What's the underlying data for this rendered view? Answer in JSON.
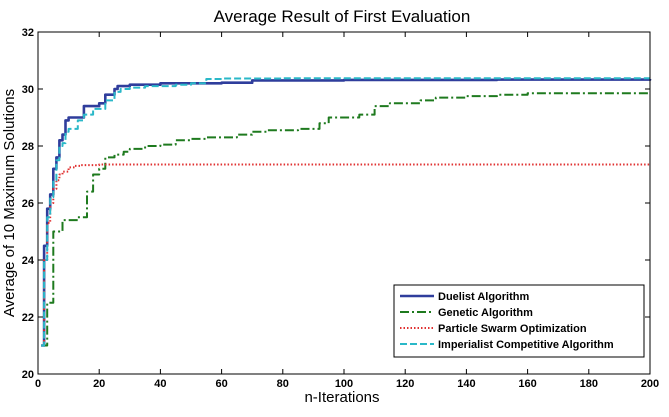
{
  "chart_data": {
    "type": "line",
    "title": "Average Result of First Evaluation",
    "xlabel": "n-Iterations",
    "ylabel": "Average of 10 Maximum Solutions",
    "xlim": [
      0,
      200
    ],
    "ylim": [
      20,
      32
    ],
    "xticks": [
      0,
      20,
      40,
      60,
      80,
      100,
      120,
      140,
      160,
      180,
      200
    ],
    "yticks": [
      20,
      22,
      24,
      26,
      28,
      30,
      32
    ],
    "grid": false,
    "legend_position": "bottom-right",
    "series": [
      {
        "name": "Duelist Algorithm",
        "color": "#2f3d9c",
        "style": "solid",
        "x": [
          1,
          2,
          3,
          4,
          5,
          6,
          7,
          8,
          9,
          10,
          13,
          15,
          20,
          22,
          25,
          26,
          30,
          40,
          50,
          60,
          70,
          100,
          150,
          200
        ],
        "y": [
          21.0,
          24.5,
          25.8,
          26.3,
          27.2,
          27.6,
          28.2,
          28.4,
          28.9,
          29.0,
          29.0,
          29.4,
          29.5,
          29.8,
          30.0,
          30.1,
          30.15,
          30.2,
          30.2,
          30.22,
          30.3,
          30.32,
          30.33,
          30.35
        ]
      },
      {
        "name": "Genetic Algorithm",
        "color": "#1e7a1e",
        "style": "dashdot",
        "x": [
          1,
          3,
          5,
          8,
          13,
          16,
          18,
          20,
          22,
          25,
          28,
          30,
          35,
          40,
          45,
          50,
          55,
          60,
          65,
          70,
          75,
          80,
          85,
          90,
          92,
          95,
          105,
          110,
          115,
          125,
          130,
          140,
          150,
          155,
          160,
          170,
          180,
          200
        ],
        "y": [
          21.0,
          22.5,
          25.0,
          25.4,
          25.5,
          26.4,
          27.0,
          27.2,
          27.6,
          27.7,
          27.8,
          27.9,
          28.0,
          28.05,
          28.2,
          28.25,
          28.3,
          28.3,
          28.4,
          28.5,
          28.55,
          28.55,
          28.6,
          28.6,
          28.8,
          29.0,
          29.1,
          29.4,
          29.5,
          29.6,
          29.7,
          29.75,
          29.8,
          29.8,
          29.85,
          29.85,
          29.85,
          29.85
        ]
      },
      {
        "name": "Particle Swarm Optimization",
        "color": "#e03030",
        "style": "dotted",
        "x": [
          1,
          2,
          3,
          4,
          5,
          6,
          7,
          8,
          10,
          12,
          14,
          20,
          50,
          100,
          200
        ],
        "y": [
          21.0,
          24.0,
          25.3,
          26.0,
          26.5,
          26.8,
          27.0,
          27.1,
          27.25,
          27.3,
          27.33,
          27.35,
          27.35,
          27.35,
          27.35
        ]
      },
      {
        "name": "Imperialist Competitive Algorithm",
        "color": "#2ab8c8",
        "style": "dashed",
        "x": [
          1,
          2,
          3,
          4,
          5,
          6,
          7,
          8,
          9,
          10,
          13,
          15,
          18,
          22,
          25,
          27,
          30,
          35,
          45,
          50,
          55,
          60,
          80,
          100,
          150,
          200
        ],
        "y": [
          21.0,
          24.0,
          25.5,
          26.2,
          26.8,
          27.5,
          28.0,
          28.1,
          28.5,
          28.6,
          28.9,
          29.1,
          29.3,
          29.6,
          29.9,
          30.0,
          30.05,
          30.1,
          30.15,
          30.2,
          30.35,
          30.37,
          30.38,
          30.38,
          30.38,
          30.38
        ]
      }
    ]
  }
}
